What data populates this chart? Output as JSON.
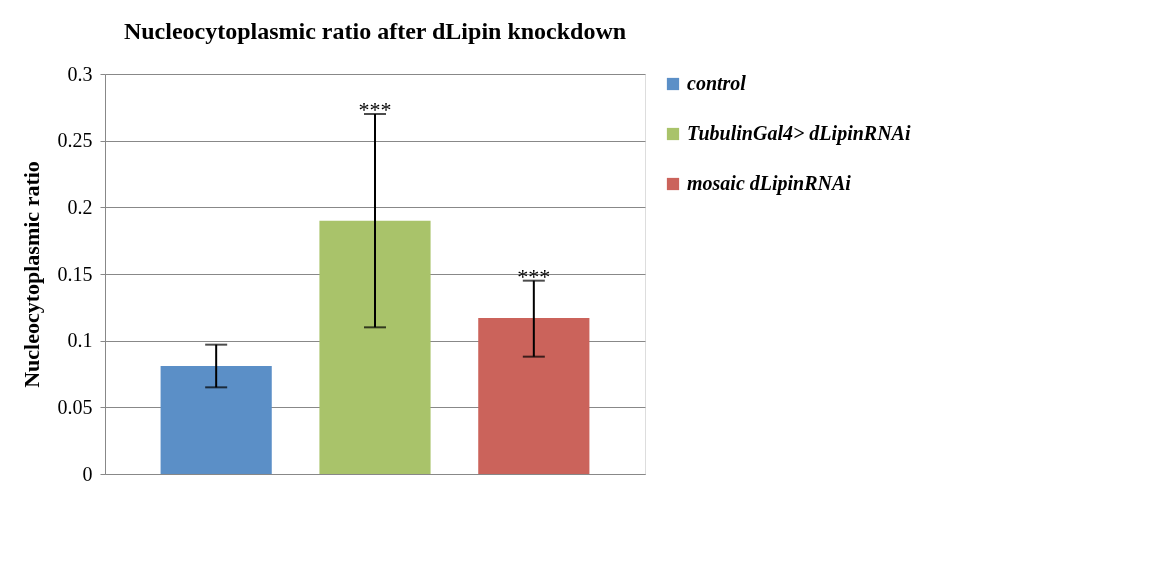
{
  "chart_data": {
    "type": "bar",
    "title": "Nucleocytoplasmic ratio after dLipin knockdown",
    "ylabel": "Nucleocytoplasmic ratio",
    "categories": [
      null,
      null,
      null
    ],
    "series": [
      {
        "name": "control",
        "color": "#5b8fc7",
        "values": [
          0.081,
          null,
          null
        ],
        "errors": [
          [
            0.065,
            0.097
          ],
          null,
          null
        ]
      },
      {
        "name": "TubulinGal4> dLipinRNAi",
        "color": "#a9c36a",
        "values": [
          null,
          0.19,
          null
        ],
        "errors": [
          null,
          [
            0.11,
            0.27
          ],
          null
        ]
      },
      {
        "name": "mosaic dLipinRNAi",
        "color": "#cb635b",
        "values": [
          null,
          null,
          0.117
        ],
        "errors": [
          null,
          null,
          [
            0.088,
            0.145
          ]
        ]
      }
    ],
    "annotations": [
      {
        "text": "***",
        "y": 0.27
      },
      {
        "text": "***",
        "y": 0.145
      }
    ],
    "ylim": [
      0,
      0.3
    ],
    "yticks": [
      0,
      0.05,
      0.1,
      0.15,
      0.2,
      0.25,
      0.3
    ],
    "grid": "y",
    "legend": "right"
  }
}
